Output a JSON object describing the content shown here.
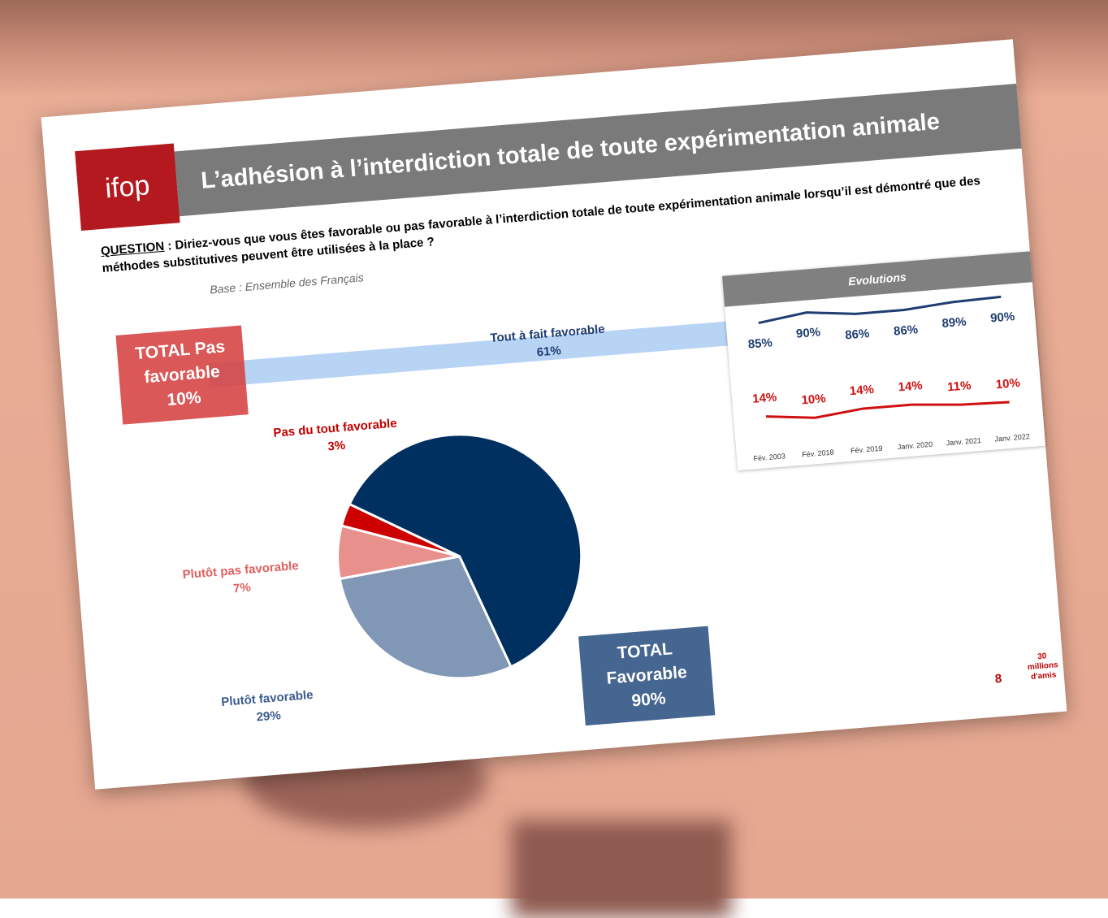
{
  "slide": {
    "logo": "ifop",
    "title": "L’adhésion à l’interdiction totale de toute expérimentation animale",
    "question_label": "QUESTION",
    "question": " : Diriez-vous que vous êtes favorable ou pas favorable à l’interdiction totale de toute expérimentation animale lorsqu’il est démontré que des méthodes substitutives peuvent être utilisées à la place ?",
    "base": "Base : Ensemble des Français",
    "total_unfavorable": "TOTAL Pas favorable",
    "total_unfavorable_value": "10%",
    "total_favorable": "TOTAL Favorable",
    "total_favorable_value": "90%",
    "page_number": "8",
    "partner_logo": "30 millions d'amis"
  },
  "chart_data": [
    {
      "type": "pie",
      "categories": [
        "Tout à fait favorable",
        "Plutôt favorable",
        "Plutôt pas favorable",
        "Pas du tout favorable"
      ],
      "values": [
        61,
        29,
        7,
        3
      ],
      "value_labels": [
        "61%",
        "29%",
        "7%",
        "3%"
      ],
      "colors": [
        "#003060",
        "#8097b5",
        "#e8908c",
        "#cc0000"
      ]
    },
    {
      "type": "line",
      "title": "Evolutions",
      "categories": [
        "Fév. 2003",
        "Fév. 2018",
        "Fév. 2019",
        "Janv. 2020",
        "Janv. 2021",
        "Janv. 2022"
      ],
      "series": [
        {
          "color": "#1f3d70",
          "values": [
            85,
            90,
            86,
            86,
            89,
            90
          ],
          "value_labels": [
            "85%",
            "90%",
            "86%",
            "86%",
            "89%",
            "90%"
          ]
        },
        {
          "color": "#d01010",
          "values": [
            14,
            10,
            14,
            14,
            11,
            10
          ],
          "value_labels": [
            "14%",
            "10%",
            "14%",
            "14%",
            "11%",
            "10%"
          ]
        }
      ]
    }
  ]
}
